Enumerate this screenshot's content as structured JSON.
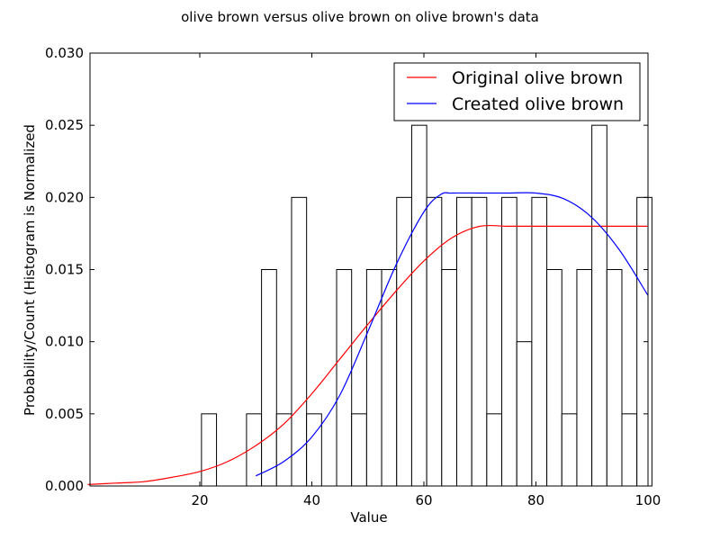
{
  "chart_data": {
    "type": "histogram+line",
    "title": "olive brown versus olive brown on olive brown's data",
    "xlabel": "Value",
    "ylabel": "Probability/Count (Histogram is Normalized",
    "xlim": [
      0.4,
      100
    ],
    "ylim": [
      0,
      0.03
    ],
    "x_ticks": [
      20,
      40,
      60,
      80,
      100
    ],
    "x_tick_labels": [
      "20",
      "40",
      "60",
      "80",
      "100"
    ],
    "y_ticks": [
      0,
      0.005,
      0.01,
      0.015,
      0.02,
      0.025,
      0.03
    ],
    "y_tick_labels": [
      "0.000",
      "0.005",
      "0.010",
      "0.015",
      "0.020",
      "0.025",
      "0.030"
    ],
    "grid": false,
    "legend_position": "top-right",
    "histogram": {
      "bin_start": 20.3,
      "bin_width": 2.68,
      "values": [
        0.005,
        0,
        0,
        0.005,
        0.015,
        0.005,
        0.02,
        0.005,
        0,
        0.015,
        0.005,
        0.015,
        0.015,
        0.02,
        0.025,
        0.02,
        0.015,
        0.02,
        0.02,
        0.005,
        0.02,
        0.01,
        0.02,
        0.015,
        0.005,
        0.015,
        0.025,
        0.015,
        0.005,
        0.02
      ]
    },
    "series": [
      {
        "name": "Original olive brown",
        "color": "#ff0000",
        "x": [
          0,
          5,
          10,
          15,
          20,
          25,
          30,
          35,
          40,
          45,
          50,
          55,
          60,
          65,
          70,
          75,
          80,
          85,
          90,
          95,
          100
        ],
        "values": [
          0.0001,
          0.0002,
          0.0003,
          0.0006,
          0.001,
          0.0017,
          0.0028,
          0.0043,
          0.0064,
          0.0088,
          0.0112,
          0.0135,
          0.0156,
          0.0172,
          0.018,
          0.018,
          0.018,
          0.018,
          0.018,
          0.018,
          0.018
        ]
      },
      {
        "name": "Created olive brown",
        "color": "#0000ff",
        "x": [
          30,
          35,
          40,
          45,
          50,
          55,
          60,
          63,
          65,
          70,
          75,
          80,
          85,
          90,
          95,
          100
        ],
        "values": [
          0.0007,
          0.0017,
          0.0034,
          0.0063,
          0.0107,
          0.0153,
          0.019,
          0.0202,
          0.0203,
          0.0203,
          0.0203,
          0.0203,
          0.0199,
          0.0186,
          0.0163,
          0.0132
        ]
      }
    ]
  }
}
